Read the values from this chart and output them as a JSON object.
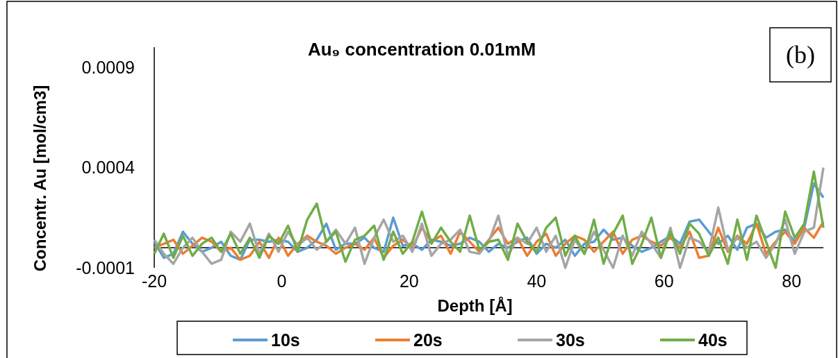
{
  "chart_data": {
    "type": "line",
    "title": "Au₉ concentration 0.01mM",
    "xlabel": "Depth [Å]",
    "ylabel": "Concentr. Au [mol/cm3]",
    "annotations": [
      "(b)"
    ],
    "x": [
      -20,
      -18.5,
      -17,
      -15.5,
      -14,
      -12.5,
      -11,
      -9.5,
      -8,
      -6.5,
      -5,
      -3.5,
      -2,
      -0.5,
      1,
      2.5,
      4,
      5.5,
      7,
      8.5,
      10,
      11.5,
      13,
      14.5,
      16,
      17.5,
      19,
      20.5,
      22,
      23.5,
      25,
      26.5,
      28,
      29.5,
      31,
      32.5,
      34,
      35.5,
      37,
      38.5,
      40,
      41.5,
      43,
      44.5,
      46,
      47.5,
      49,
      50.5,
      52,
      53.5,
      55,
      56.5,
      58,
      59.5,
      61,
      62.5,
      64,
      65.5,
      67,
      68.5,
      70,
      71.5,
      73,
      74.5,
      76,
      77.5,
      79,
      80.5,
      82,
      83.5,
      85
    ],
    "series": [
      {
        "name": "10s",
        "color": "#5b9bd5",
        "values": [
          3e-05,
          -5e-05,
          -3e-05,
          8e-05,
          2e-05,
          -2e-05,
          0,
          3e-05,
          -4e-05,
          -6e-05,
          4e-05,
          4e-05,
          3e-05,
          4e-05,
          3e-05,
          -2e-05,
          0,
          4e-05,
          0.00012,
          -1e-05,
          2e-05,
          2e-05,
          5e-05,
          0,
          -2e-05,
          0.00015,
          1e-05,
          2e-05,
          -1e-05,
          4e-05,
          3e-05,
          1e-05,
          2e-05,
          5e-05,
          3e-05,
          -2e-05,
          2e-05,
          0,
          3e-05,
          5e-05,
          -3e-05,
          2e-05,
          0,
          4e-05,
          -4e-05,
          2e-05,
          3e-05,
          9e-05,
          4e-05,
          5e-05,
          1e-05,
          -2e-05,
          0,
          3e-05,
          6e-05,
          2e-05,
          0.00013,
          0.00014,
          8e-05,
          2e-05,
          6e-05,
          -1e-05,
          0.0001,
          0.00012,
          5e-05,
          8e-05,
          9e-05,
          3e-05,
          0.0001,
          0.00032,
          0.00025
        ]
      },
      {
        "name": "20s",
        "color": "#ed7d31",
        "values": [
          0,
          2e-05,
          4e-05,
          -3e-05,
          1e-05,
          5e-05,
          3e-05,
          -2e-05,
          0,
          -6e-05,
          -4e-05,
          3e-05,
          -5e-05,
          5e-05,
          -4e-05,
          2e-05,
          6e-05,
          3e-05,
          1e-05,
          -3e-05,
          0,
          2e-05,
          -1e-05,
          5e-05,
          -5e-05,
          1e-05,
          4e-05,
          0,
          0.0001,
          3e-05,
          6e-05,
          -3e-05,
          8e-05,
          3e-05,
          -2e-05,
          4e-05,
          0.0001,
          2e-05,
          5e-05,
          -4e-05,
          3e-05,
          7e-05,
          -4e-05,
          2e-05,
          6e-05,
          4e-05,
          -2e-05,
          3e-05,
          8e-05,
          -3e-05,
          4e-05,
          6e-05,
          3e-05,
          1e-05,
          5e-05,
          0,
          8e-05,
          -5e-05,
          -4e-05,
          0.0001,
          -2e-05,
          6e-05,
          2e-05,
          0.00012,
          -3e-05,
          3e-05,
          8e-05,
          2e-05,
          0.0001,
          5e-05,
          0.00013
        ]
      },
      {
        "name": "30s",
        "color": "#a5a5a5",
        "values": [
          4e-05,
          -3e-05,
          -8e-05,
          0,
          5e-05,
          -2e-05,
          -8e-05,
          -6e-05,
          8e-05,
          3e-05,
          0.00012,
          -3e-05,
          7e-05,
          -2e-05,
          8e-05,
          1e-05,
          5e-05,
          -1e-05,
          3e-05,
          9e-05,
          2e-05,
          0.0001,
          -8e-05,
          5e-05,
          0.00014,
          3e-05,
          6e-05,
          -2e-05,
          0.00012,
          -4e-05,
          2e-05,
          4e-05,
          9e-05,
          -2e-05,
          -3e-05,
          3e-05,
          0.00016,
          -4e-05,
          5e-05,
          2e-05,
          0.0001,
          -2e-05,
          6e-05,
          -0.0001,
          4e-05,
          -3e-05,
          8e-05,
          -1e-05,
          -0.0001,
          6e-05,
          -4e-05,
          8e-05,
          2e-05,
          -5e-05,
          0.0001,
          -0.0001,
          5e-05,
          3e-05,
          -2e-05,
          0.0002,
          -1e-05,
          5e-05,
          0,
          3e-05,
          -5e-05,
          2e-05,
          0.00014,
          -3e-05,
          8e-05,
          0.0001,
          0.0004
        ]
      },
      {
        "name": "40s",
        "color": "#70ad47",
        "values": [
          -3e-05,
          7e-05,
          -5e-05,
          6e-05,
          -4e-05,
          2e-05,
          5e-05,
          -2e-05,
          7e-05,
          -3e-05,
          5e-05,
          -5e-05,
          6e-05,
          2e-05,
          0.00011,
          -2e-05,
          0.00014,
          0.00022,
          3e-05,
          8e-05,
          -7e-05,
          4e-05,
          6e-05,
          0.00011,
          -6e-05,
          8e-05,
          -3e-05,
          3e-05,
          0.00018,
          2e-05,
          0.0001,
          3e-05,
          -2e-05,
          0.00016,
          -1e-05,
          3e-05,
          4e-05,
          -6e-05,
          0.00012,
          3e-05,
          -2e-05,
          0.0001,
          0.00015,
          -4e-05,
          6e-05,
          -3e-05,
          0.00014,
          -8e-05,
          7e-05,
          0.00016,
          -8e-05,
          2e-05,
          0.00015,
          -5e-05,
          8e-05,
          -3e-05,
          0.00012,
          7e-05,
          -4e-05,
          5e-05,
          -8e-05,
          0.00014,
          -6e-05,
          0.00016,
          3e-05,
          -0.0001,
          0.00018,
          5e-05,
          0.00012,
          0.00038,
          0.0001
        ]
      }
    ],
    "xlim": [
      -20,
      85
    ],
    "xticks": [
      -20,
      0,
      20,
      40,
      60,
      80
    ],
    "ylim": [
      -0.0001,
      0.001
    ],
    "yticks": [
      -0.0001,
      0.0004,
      0.0009
    ],
    "grid": false,
    "legend": "bottom",
    "marker": "none",
    "line_style": "solid"
  }
}
